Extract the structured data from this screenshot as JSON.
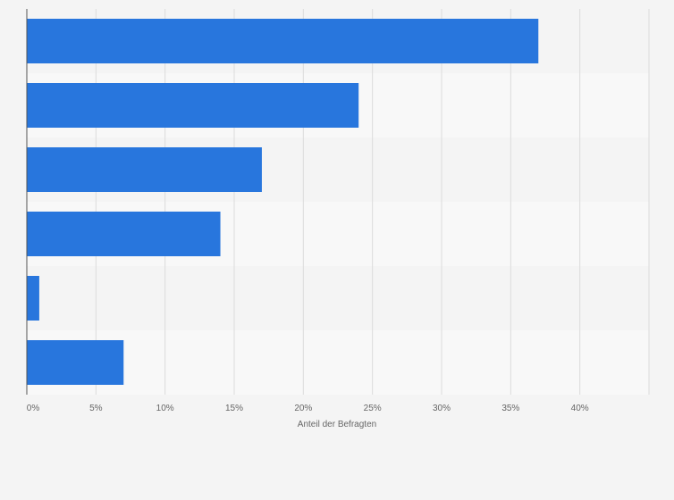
{
  "chart_data": {
    "type": "bar",
    "orientation": "horizontal",
    "categories": [
      "",
      "",
      "",
      "",
      "",
      ""
    ],
    "values": [
      37,
      24,
      17,
      14,
      0.9,
      7
    ],
    "xlabel": "Anteil der Befragten",
    "ylabel": "",
    "xlim": [
      0,
      45
    ],
    "ticks": [
      0,
      5,
      10,
      15,
      20,
      25,
      30,
      35,
      40
    ],
    "tick_labels": [
      "0%",
      "5%",
      "10%",
      "15%",
      "20%",
      "25%",
      "30%",
      "35%",
      "40%"
    ],
    "grid": true,
    "legend": "none",
    "colors": {
      "bar": "#2876dd",
      "background": "#f4f4f4",
      "band_dark": "#f4f4f4",
      "band_light": "#f8f8f8",
      "grid": "#dcdcdc",
      "axis": "#555555",
      "text": "#666666"
    }
  }
}
